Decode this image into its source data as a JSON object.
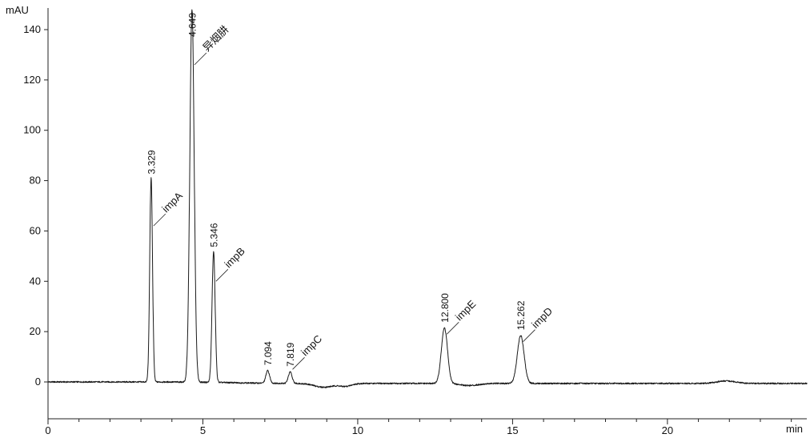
{
  "chart_data": {
    "type": "line",
    "title": "",
    "xlabel": "min",
    "ylabel": "mAU",
    "xlim": [
      0,
      24.5
    ],
    "ylim": [
      -14.6,
      148.6
    ],
    "x_ticks": [
      0,
      5,
      10,
      15,
      20
    ],
    "y_ticks": [
      0,
      20,
      40,
      60,
      80,
      100,
      120,
      140
    ],
    "line_color": "#1a1a1a",
    "axis_color": "#222222",
    "text_color": "#111111",
    "peaks": [
      {
        "rt": 3.329,
        "rt_label": "3.329",
        "name": "impA",
        "height": 81,
        "sigma": 0.045,
        "ann_v": 62
      },
      {
        "rt": 4.649,
        "rt_label": "4.649",
        "name": "异烟肼",
        "height": 148,
        "sigma": 0.07,
        "ann_v": 126
      },
      {
        "rt": 5.346,
        "rt_label": "5.346",
        "name": "impB",
        "height": 52,
        "sigma": 0.05,
        "ann_v": 40
      },
      {
        "rt": 7.094,
        "rt_label": "7.094",
        "name": "",
        "height": 5,
        "sigma": 0.06,
        "ann_v": 0
      },
      {
        "rt": 7.819,
        "rt_label": "7.819",
        "name": "impC",
        "height": 4.5,
        "sigma": 0.06,
        "ann_v": 5
      },
      {
        "rt": 12.8,
        "rt_label": "12.800",
        "name": "impE",
        "height": 22,
        "sigma": 0.1,
        "ann_v": 19
      },
      {
        "rt": 15.262,
        "rt_label": "15.262",
        "name": "impD",
        "height": 19,
        "sigma": 0.11,
        "ann_v": 16
      }
    ],
    "baseline_features": [
      {
        "x": 8.9,
        "height": -1.5,
        "sigma": 0.3
      },
      {
        "x": 9.6,
        "height": -1.1,
        "sigma": 0.2
      },
      {
        "x": 13.6,
        "height": -0.8,
        "sigma": 0.3
      },
      {
        "x": 21.9,
        "height": 1.0,
        "sigma": 0.3
      }
    ]
  }
}
